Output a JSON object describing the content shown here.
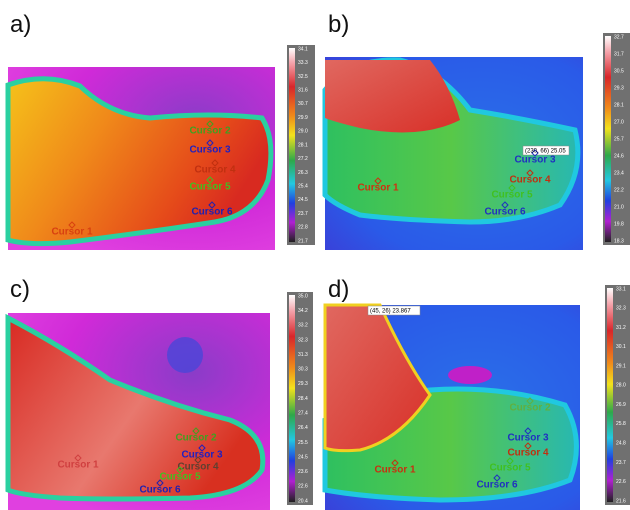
{
  "panels": [
    {
      "label": "a)",
      "cursors": [
        "Cursor 1",
        "Cursor 2",
        "Cursor 3",
        "Cursor 4",
        "Cursor 5",
        "Cursor 6"
      ],
      "scale": [
        "34.1",
        "33.3",
        "32.5",
        "31.6",
        "30.7",
        "29.9",
        "29.0",
        "28.1",
        "27.2",
        "26.3",
        "25.4",
        "24.5",
        "23.7",
        "22.8",
        "21.7"
      ]
    },
    {
      "label": "b)",
      "cursors": [
        "Cursor 1",
        "Cursor 3",
        "Cursor 4",
        "Cursor 5",
        "Cursor 6"
      ],
      "tooltip": "(230, 66) 25.05",
      "scale": [
        "32.7",
        "31.7",
        "30.5",
        "29.3",
        "28.1",
        "27.0",
        "25.7",
        "24.6",
        "23.4",
        "22.2",
        "21.0",
        "19.8",
        "18.3"
      ]
    },
    {
      "label": "c)",
      "cursors": [
        "Cursor 1",
        "Cursor 2",
        "Cursor 3",
        "Cursor 4",
        "Cursor 5",
        "Cursor 6"
      ],
      "scale": [
        "35.0",
        "34.2",
        "33.2",
        "32.3",
        "31.3",
        "30.3",
        "29.3",
        "28.4",
        "27.4",
        "26.4",
        "25.5",
        "24.5",
        "23.6",
        "22.6",
        "20.4"
      ]
    },
    {
      "label": "d)",
      "cursors": [
        "Cursor 1",
        "Cursor 2",
        "Cursor 3",
        "Cursor 4",
        "Cursor 5",
        "Cursor 6"
      ],
      "tooltip": "(45, 26) 23.867",
      "scale": [
        "33.1",
        "32.3",
        "31.2",
        "30.1",
        "29.1",
        "28.0",
        "26.9",
        "25.8",
        "24.8",
        "23.7",
        "22.6",
        "21.6"
      ]
    }
  ]
}
